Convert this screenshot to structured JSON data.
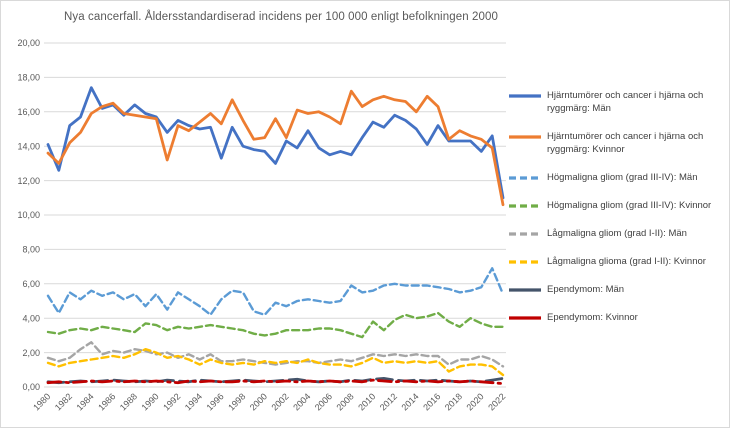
{
  "title": "Nya cancerfall. Åldersstandardiserad incidens per 100 000 enligt befolkningen 2000",
  "axes": {
    "y_tick_labels": [
      "0,00",
      "2,00",
      "4,00",
      "6,00",
      "8,00",
      "10,00",
      "12,00",
      "14,00",
      "16,00",
      "18,00",
      "20,00"
    ],
    "x_tick_labels": [
      "1980",
      "1982",
      "1984",
      "1986",
      "1988",
      "1990",
      "1992",
      "1994",
      "1996",
      "1998",
      "2000",
      "2002",
      "2004",
      "2006",
      "2008",
      "2010",
      "2012",
      "2014",
      "2016",
      "2018",
      "2020",
      "2022"
    ]
  },
  "colors": {
    "grid": "#d9d9d9",
    "axis_text": "#595959",
    "legend_text": "#404040",
    "background": "#ffffff"
  },
  "chart_data": {
    "type": "line",
    "title": "Nya cancerfall. Åldersstandardiserad incidens per 100 000 enligt befolkningen 2000",
    "xlabel": "",
    "ylabel": "",
    "ylim": [
      0,
      20
    ],
    "y_tick_step": 2,
    "grid": true,
    "legend_position": "right",
    "x": [
      1980,
      1981,
      1982,
      1983,
      1984,
      1985,
      1986,
      1987,
      1988,
      1989,
      1990,
      1991,
      1992,
      1993,
      1994,
      1995,
      1996,
      1997,
      1998,
      1999,
      2000,
      2001,
      2002,
      2003,
      2004,
      2005,
      2006,
      2007,
      2008,
      2009,
      2010,
      2011,
      2012,
      2013,
      2014,
      2015,
      2016,
      2017,
      2018,
      2019,
      2020,
      2021,
      2022
    ],
    "series": [
      {
        "name": "Hjärntumörer och cancer i hjärna och ryggmärg: Män",
        "color": "#4472c4",
        "dash": "",
        "legend_dash": "",
        "width": 2.8,
        "values": [
          14.1,
          12.6,
          15.2,
          15.7,
          17.4,
          16.2,
          16.4,
          15.8,
          16.4,
          15.9,
          15.7,
          14.8,
          15.5,
          15.2,
          15.0,
          15.1,
          13.3,
          15.1,
          14.0,
          13.8,
          13.7,
          13.0,
          14.3,
          13.9,
          14.9,
          13.9,
          13.5,
          13.7,
          13.5,
          14.5,
          15.4,
          15.1,
          15.8,
          15.5,
          15.0,
          14.1,
          15.2,
          14.3,
          14.3,
          14.3,
          13.7,
          14.6,
          11.0
        ]
      },
      {
        "name": "Hjärntumörer och cancer i hjärna och ryggmärg: Kvinnor",
        "color": "#ed7d31",
        "dash": "",
        "legend_dash": "",
        "width": 2.8,
        "values": [
          13.6,
          13.0,
          14.2,
          14.8,
          15.9,
          16.3,
          16.5,
          15.9,
          15.8,
          15.7,
          15.6,
          13.2,
          15.2,
          14.9,
          15.4,
          15.9,
          15.3,
          16.7,
          15.5,
          14.4,
          14.5,
          15.6,
          14.5,
          16.1,
          15.9,
          16.0,
          15.7,
          15.3,
          17.2,
          16.3,
          16.7,
          16.9,
          16.7,
          16.6,
          16.0,
          16.9,
          16.3,
          14.4,
          14.9,
          14.6,
          14.4,
          13.9,
          10.6
        ]
      },
      {
        "name": "Högmaligna gliom (grad III-IV): Män",
        "color": "#5b9bd5",
        "dash": "7,4",
        "legend_dash": "7,4",
        "width": 2.4,
        "values": [
          5.3,
          4.3,
          5.5,
          5.1,
          5.6,
          5.3,
          5.5,
          5.1,
          5.4,
          4.7,
          5.4,
          4.5,
          5.5,
          5.1,
          4.7,
          4.2,
          5.1,
          5.6,
          5.5,
          4.4,
          4.2,
          4.9,
          4.7,
          5.0,
          5.1,
          5.0,
          4.9,
          5.0,
          5.9,
          5.5,
          5.6,
          5.9,
          6.0,
          5.9,
          5.9,
          5.9,
          5.8,
          5.7,
          5.5,
          5.6,
          5.8,
          6.9,
          5.4
        ]
      },
      {
        "name": "Högmaligna gliom (grad III-IV): Kvinnor",
        "color": "#70ad47",
        "dash": "7,4",
        "legend_dash": "7,4",
        "width": 2.4,
        "values": [
          3.2,
          3.1,
          3.3,
          3.4,
          3.3,
          3.5,
          3.4,
          3.3,
          3.2,
          3.7,
          3.6,
          3.3,
          3.5,
          3.4,
          3.5,
          3.6,
          3.5,
          3.4,
          3.3,
          3.1,
          3.0,
          3.1,
          3.3,
          3.3,
          3.3,
          3.4,
          3.4,
          3.3,
          3.1,
          2.9,
          3.8,
          3.3,
          3.9,
          4.2,
          4.0,
          4.1,
          4.3,
          3.8,
          3.5,
          4.0,
          3.7,
          3.5,
          3.5
        ]
      },
      {
        "name": "Lågmaligna gliom (grad I-II): Män",
        "color": "#a5a5a5",
        "dash": "7,4",
        "legend_dash": "7,4",
        "width": 2.4,
        "values": [
          1.7,
          1.5,
          1.7,
          2.2,
          2.6,
          1.9,
          2.1,
          2.0,
          2.2,
          2.1,
          1.9,
          2.0,
          1.7,
          1.9,
          1.6,
          1.9,
          1.5,
          1.5,
          1.6,
          1.5,
          1.4,
          1.3,
          1.4,
          1.5,
          1.5,
          1.4,
          1.5,
          1.6,
          1.5,
          1.7,
          1.9,
          1.8,
          1.9,
          1.8,
          1.9,
          1.8,
          1.8,
          1.3,
          1.6,
          1.6,
          1.8,
          1.6,
          1.2
        ]
      },
      {
        "name": "Lågmaligna glioma (grad I-II): Kvinnor",
        "color": "#ffc000",
        "dash": "7,4",
        "legend_dash": "7,4",
        "width": 2.4,
        "values": [
          1.4,
          1.2,
          1.4,
          1.5,
          1.6,
          1.7,
          1.8,
          1.7,
          1.9,
          2.2,
          2.0,
          1.7,
          1.8,
          1.6,
          1.3,
          1.6,
          1.4,
          1.3,
          1.4,
          1.3,
          1.5,
          1.4,
          1.5,
          1.4,
          1.6,
          1.4,
          1.3,
          1.3,
          1.2,
          1.4,
          1.7,
          1.4,
          1.5,
          1.4,
          1.5,
          1.4,
          1.5,
          0.9,
          1.2,
          1.3,
          1.3,
          1.2,
          0.7
        ]
      },
      {
        "name": "Ependymom: Män",
        "color": "#44546a",
        "dash": "16,6",
        "legend_dash": "",
        "width": 2.8,
        "values": [
          0.3,
          0.25,
          0.3,
          0.35,
          0.3,
          0.35,
          0.4,
          0.35,
          0.3,
          0.35,
          0.3,
          0.4,
          0.35,
          0.3,
          0.4,
          0.35,
          0.3,
          0.35,
          0.4,
          0.35,
          0.3,
          0.35,
          0.4,
          0.45,
          0.35,
          0.3,
          0.35,
          0.3,
          0.4,
          0.35,
          0.45,
          0.5,
          0.4,
          0.35,
          0.4,
          0.35,
          0.4,
          0.35,
          0.3,
          0.35,
          0.3,
          0.4,
          0.5
        ]
      },
      {
        "name": "Ependymom: Kvinnor",
        "color": "#c00000",
        "dash": "13,5,2.5,5",
        "legend_dash": "",
        "width": 2.8,
        "values": [
          0.25,
          0.3,
          0.25,
          0.3,
          0.35,
          0.3,
          0.35,
          0.3,
          0.35,
          0.3,
          0.35,
          0.3,
          0.25,
          0.35,
          0.3,
          0.35,
          0.3,
          0.3,
          0.35,
          0.3,
          0.35,
          0.3,
          0.35,
          0.3,
          0.35,
          0.3,
          0.35,
          0.3,
          0.35,
          0.3,
          0.4,
          0.35,
          0.3,
          0.35,
          0.3,
          0.35,
          0.3,
          0.35,
          0.3,
          0.35,
          0.3,
          0.25,
          0.2
        ]
      }
    ]
  }
}
